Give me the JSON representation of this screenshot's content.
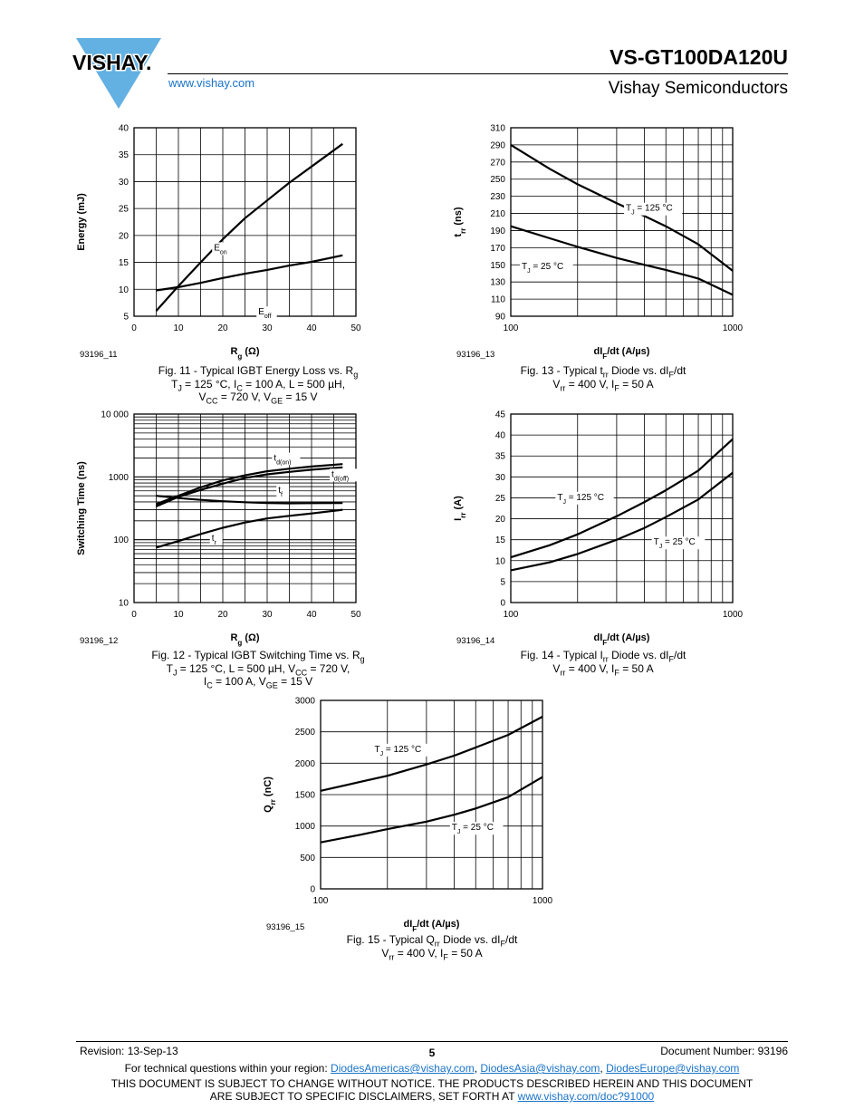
{
  "header": {
    "logo_text": "VISHAY.",
    "part_number": "VS-GT100DA120U",
    "website": "www.vishay.com",
    "company": "Vishay Semiconductors"
  },
  "figures": [
    {
      "id": "fig11",
      "figure_code": "93196_11",
      "ylabel": "Energy (mJ)",
      "xlabel_main": "R",
      "xlabel_sub": "g",
      "xlabel_tail": " (Ω)",
      "caption_lines": [
        [
          {
            "t": "Fig. 11 - Typical IGBT Energy Loss vs. R"
          },
          {
            "t": "g",
            "s": "sub"
          }
        ],
        [
          {
            "t": "T"
          },
          {
            "t": "J",
            "s": "sub"
          },
          {
            "t": " = 125 °C, I"
          },
          {
            "t": "C",
            "s": "sub"
          },
          {
            "t": " = 100 A, L = 500 µH,"
          }
        ],
        [
          {
            "t": "V"
          },
          {
            "t": "CC",
            "s": "sub"
          },
          {
            "t": " = 720 V, V"
          },
          {
            "t": "GE",
            "s": "sub"
          },
          {
            "t": " = 15 V"
          }
        ]
      ],
      "chart_data": {
        "type": "line",
        "xscale": "linear",
        "yscale": "linear",
        "xlim": [
          0,
          50
        ],
        "ylim": [
          5,
          40
        ],
        "xticks": [
          0,
          10,
          20,
          30,
          40,
          50
        ],
        "yticks": [
          5,
          10,
          15,
          20,
          25,
          30,
          35,
          40
        ],
        "xtick_labels": [
          "0",
          "10",
          "20",
          "30",
          "40",
          "50"
        ],
        "ytick_labels": [
          "5",
          "10",
          "15",
          "20",
          "25",
          "30",
          "35",
          "40"
        ],
        "minor_x": [
          5,
          15,
          25,
          35,
          45
        ],
        "series": [
          {
            "name": "E",
            "name_sub": "on",
            "label_pos": [
              18,
              17.2
            ],
            "x": [
              5,
              10,
              15,
              20,
              25,
              30,
              35,
              40,
              47
            ],
            "y": [
              6,
              10.6,
              15,
              19.3,
              23.2,
              26.5,
              29.8,
              32.8,
              37
            ]
          },
          {
            "name": "E",
            "name_sub": "off",
            "label_pos": [
              28,
              5.3
            ],
            "x": [
              5,
              10,
              15,
              20,
              25,
              30,
              35,
              40,
              47
            ],
            "y": [
              9.8,
              10.4,
              11.2,
              12.1,
              12.9,
              13.6,
              14.4,
              15.1,
              16.3
            ]
          }
        ]
      }
    },
    {
      "id": "fig13",
      "figure_code": "93196_13",
      "ylabel": "t",
      "ylabel_sub": "rr",
      "ylabel_tail": " (ns)",
      "xlabel_main": "dI",
      "xlabel_sub": "F",
      "xlabel_tail": "/dt (A/µs)",
      "caption_lines": [
        [
          {
            "t": "Fig. 13 - Typical t"
          },
          {
            "t": "rr",
            "s": "sub"
          },
          {
            "t": " Diode vs. dI"
          },
          {
            "t": "F",
            "s": "sub"
          },
          {
            "t": "/dt"
          }
        ],
        [
          {
            "t": "V"
          },
          {
            "t": "rr",
            "s": "sub"
          },
          {
            "t": " = 400 V, I"
          },
          {
            "t": "F",
            "s": "sub"
          },
          {
            "t": " = 50 A"
          }
        ]
      ],
      "chart_data": {
        "type": "line",
        "xscale": "log",
        "yscale": "linear",
        "xlim": [
          100,
          1000
        ],
        "ylim": [
          90,
          310
        ],
        "xticks": [
          100,
          1000
        ],
        "yticks": [
          90,
          110,
          130,
          150,
          170,
          190,
          210,
          230,
          250,
          270,
          290,
          310
        ],
        "xtick_labels": [
          "100",
          "1000"
        ],
        "ytick_labels": [
          "90",
          "110",
          "130",
          "150",
          "170",
          "190",
          "210",
          "230",
          "250",
          "270",
          "290",
          "310"
        ],
        "minor_x": [
          200,
          300,
          400,
          500,
          600,
          700,
          800,
          900
        ],
        "series": [
          {
            "name": "T",
            "name_sub": "J",
            "name_tail": " = 125 °C",
            "label_pos": [
              330,
              213
            ],
            "x": [
              100,
              150,
              200,
              300,
              400,
              500,
              700,
              1000
            ],
            "y": [
              290,
              262,
              244,
              222,
              207,
              195,
              174,
              143
            ]
          },
          {
            "name": "T",
            "name_sub": "J",
            "name_tail": " = 25 °C",
            "label_pos": [
              112,
              145
            ],
            "x": [
              100,
              150,
              200,
              300,
              400,
              500,
              700,
              1000
            ],
            "y": [
              195,
              181,
              171,
              158,
              150,
              144,
              134,
              115
            ]
          }
        ]
      }
    },
    {
      "id": "fig12",
      "figure_code": "93196_12",
      "ylabel": "Switching Time (ns)",
      "xlabel_main": "R",
      "xlabel_sub": "g",
      "xlabel_tail": " (Ω)",
      "caption_lines": [
        [
          {
            "t": "Fig. 12 - Typical IGBT Switching Time vs. R"
          },
          {
            "t": "g",
            "s": "sub"
          }
        ],
        [
          {
            "t": "T"
          },
          {
            "t": "J",
            "s": "sub"
          },
          {
            "t": " = 125 °C, L = 500 µH, V"
          },
          {
            "t": "CC",
            "s": "sub"
          },
          {
            "t": " = 720 V,"
          }
        ],
        [
          {
            "t": "I"
          },
          {
            "t": "C",
            "s": "sub"
          },
          {
            "t": " = 100 A, V"
          },
          {
            "t": "GE",
            "s": "sub"
          },
          {
            "t": " = 15 V"
          }
        ]
      ],
      "chart_data": {
        "type": "line",
        "xscale": "linear",
        "yscale": "log",
        "xlim": [
          0,
          50
        ],
        "ylim": [
          10,
          10000
        ],
        "xticks": [
          0,
          10,
          20,
          30,
          40,
          50
        ],
        "yticks": [
          10,
          100,
          1000,
          10000
        ],
        "xtick_labels": [
          "0",
          "10",
          "20",
          "30",
          "40",
          "50"
        ],
        "ytick_labels": [
          "10",
          "100",
          "1000",
          "10 000"
        ],
        "minor_x": [
          5,
          15,
          25,
          35,
          45
        ],
        "series": [
          {
            "name": "t",
            "name_sub": "d(on)",
            "label_pos": [
              31.5,
              1800
            ],
            "x": [
              5,
              10,
              15,
              20,
              25,
              30,
              35,
              40,
              47
            ],
            "y": [
              370,
              500,
              680,
              880,
              1060,
              1230,
              1350,
              1460,
              1600
            ]
          },
          {
            "name": "t",
            "name_sub": "d(off)",
            "label_pos": [
              44.5,
              1000
            ],
            "x": [
              5,
              10,
              15,
              20,
              25,
              30,
              35,
              40,
              47
            ],
            "y": [
              340,
              480,
              620,
              780,
              960,
              1100,
              1200,
              1300,
              1420
            ]
          },
          {
            "name": "t",
            "name_sub": "f",
            "label_pos": [
              32.5,
              560
            ],
            "x": [
              5,
              10,
              15,
              20,
              25,
              30,
              35,
              40,
              47
            ],
            "y": [
              500,
              460,
              430,
              410,
              395,
              385,
              380,
              382,
              385
            ]
          },
          {
            "name": "t",
            "name_sub": "r",
            "label_pos": [
              17.5,
              96
            ],
            "x": [
              5,
              10,
              15,
              20,
              25,
              30,
              35,
              40,
              47
            ],
            "y": [
              75,
              95,
              123,
              155,
              188,
              218,
              240,
              262,
              300
            ]
          }
        ]
      }
    },
    {
      "id": "fig14",
      "figure_code": "93196_14",
      "ylabel": "I",
      "ylabel_sub": "rr",
      "ylabel_tail": " (A)",
      "xlabel_main": "dI",
      "xlabel_sub": "F",
      "xlabel_tail": "/dt (A/µs)",
      "caption_lines": [
        [
          {
            "t": "Fig. 14 - Typical I"
          },
          {
            "t": "rr",
            "s": "sub"
          },
          {
            "t": " Diode vs. dI"
          },
          {
            "t": "F",
            "s": "sub"
          },
          {
            "t": "/dt"
          }
        ],
        [
          {
            "t": "V"
          },
          {
            "t": "rr",
            "s": "sub"
          },
          {
            "t": " = 400 V, I"
          },
          {
            "t": "F",
            "s": "sub"
          },
          {
            "t": " = 50 A"
          }
        ]
      ],
      "chart_data": {
        "type": "line",
        "xscale": "log",
        "yscale": "linear",
        "xlim": [
          100,
          1000
        ],
        "ylim": [
          0,
          45
        ],
        "xticks": [
          100,
          1000
        ],
        "yticks": [
          0,
          5,
          10,
          15,
          20,
          25,
          30,
          35,
          40,
          45
        ],
        "xtick_labels": [
          "100",
          "1000"
        ],
        "ytick_labels": [
          "0",
          "5",
          "10",
          "15",
          "20",
          "25",
          "30",
          "35",
          "40",
          "45"
        ],
        "minor_x": [
          200,
          300,
          400,
          500,
          600,
          700,
          800,
          900
        ],
        "series": [
          {
            "name": "T",
            "name_sub": "J",
            "name_tail": " = 125 °C",
            "label_pos": [
              162,
              24.5
            ],
            "x": [
              100,
              150,
              200,
              300,
              400,
              500,
              700,
              1000
            ],
            "y": [
              10.8,
              13.7,
              16.3,
              20.6,
              24.0,
              26.8,
              31.5,
              39.0
            ]
          },
          {
            "name": "T",
            "name_sub": "J",
            "name_tail": " = 25 °C",
            "label_pos": [
              440,
              13.8
            ],
            "x": [
              100,
              150,
              200,
              300,
              400,
              500,
              700,
              1000
            ],
            "y": [
              7.7,
              9.6,
              11.6,
              15.0,
              17.8,
              20.4,
              24.6,
              31.0
            ]
          }
        ]
      }
    },
    {
      "id": "fig15",
      "figure_code": "93196_15",
      "ylabel": "Q",
      "ylabel_sub": "rr",
      "ylabel_tail": " (nC)",
      "xlabel_main": "dI",
      "xlabel_sub": "F",
      "xlabel_tail": "/dt (A/µs)",
      "caption_lines": [
        [
          {
            "t": "Fig. 15 - Typical Q"
          },
          {
            "t": "rr",
            "s": "sub"
          },
          {
            "t": " Diode vs. dI"
          },
          {
            "t": "F",
            "s": "sub"
          },
          {
            "t": "/dt"
          }
        ],
        [
          {
            "t": "V"
          },
          {
            "t": "rr",
            "s": "sub"
          },
          {
            "t": " = 400 V, I"
          },
          {
            "t": "F",
            "s": "sub"
          },
          {
            "t": " = 50 A"
          }
        ]
      ],
      "chart_data": {
        "type": "line",
        "xscale": "log",
        "yscale": "linear",
        "xlim": [
          100,
          1000
        ],
        "ylim": [
          0,
          3000
        ],
        "xticks": [
          100,
          1000
        ],
        "yticks": [
          0,
          500,
          1000,
          1500,
          2000,
          2500,
          3000
        ],
        "xtick_labels": [
          "100",
          "1000"
        ],
        "ytick_labels": [
          "0",
          "500",
          "1000",
          "1500",
          "2000",
          "2500",
          "3000"
        ],
        "minor_x": [
          200,
          300,
          400,
          500,
          600,
          700,
          800,
          900
        ],
        "series": [
          {
            "name": "T",
            "name_sub": "J",
            "name_tail": " = 125 °C",
            "label_pos": [
              175,
              2180
            ],
            "x": [
              100,
              150,
              200,
              300,
              400,
              500,
              700,
              1000
            ],
            "y": [
              1560,
              1700,
              1800,
              1980,
              2120,
              2250,
              2450,
              2740
            ]
          },
          {
            "name": "T",
            "name_sub": "J",
            "name_tail": " = 25 °C",
            "label_pos": [
              390,
              935
            ],
            "x": [
              100,
              150,
              200,
              300,
              400,
              500,
              700,
              1000
            ],
            "y": [
              740,
              860,
              950,
              1070,
              1180,
              1280,
              1460,
              1780
            ]
          }
        ]
      }
    }
  ],
  "footer": {
    "revision": "Revision: 13-Sep-13",
    "page": "5",
    "document_number": "Document Number: 93196",
    "contact_prefix": "For technical questions within your region: ",
    "emails": [
      "DiodesAmericas@vishay.com",
      "DiodesAsia@vishay.com",
      "DiodesEurope@vishay.com"
    ],
    "disclaimer_line1": "THIS DOCUMENT IS SUBJECT TO CHANGE WITHOUT NOTICE. THE PRODUCTS DESCRIBED HEREIN AND THIS DOCUMENT",
    "disclaimer_line2_prefix": "ARE SUBJECT TO SPECIFIC DISCLAIMERS, SET FORTH AT ",
    "disclaimer_link": "www.vishay.com/doc?91000"
  },
  "colors": {
    "link": "#1a73c8",
    "logo_blue": "#63b0e3"
  }
}
